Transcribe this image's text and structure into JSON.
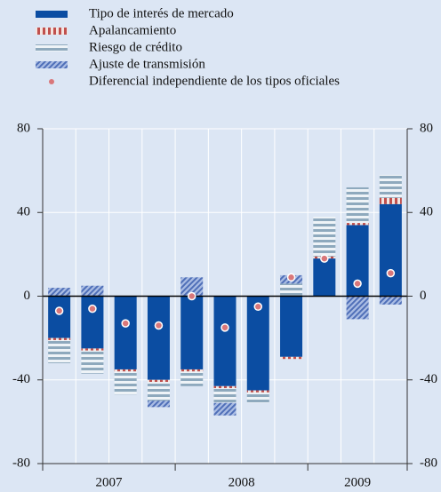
{
  "chart_data": {
    "type": "bar",
    "stacked": true,
    "categories": [
      "2007",
      null,
      null,
      null,
      "2008",
      null,
      null,
      null,
      "2009",
      null,
      null
    ],
    "series": [
      {
        "name": "Tipo de interés de mercado",
        "color": "#0b4da2",
        "pattern": "solid",
        "values": [
          -20,
          -25,
          -35,
          -40,
          -35,
          -43,
          -45,
          -29,
          18,
          34,
          44
        ]
      },
      {
        "name": "Apalancamiento",
        "color": "#c0504d",
        "pattern": "vlines",
        "values": [
          -1,
          -1,
          -1,
          -1,
          -1,
          -1,
          -1,
          -1,
          1,
          1,
          3
        ]
      },
      {
        "name": "Riesgo de crédito",
        "color": "#8ea9bd",
        "pattern": "hlines",
        "values": [
          -11,
          -11,
          -11,
          -9,
          -7,
          -7,
          -5,
          6,
          19,
          17,
          11
        ]
      },
      {
        "name": "Ajuste de transmisión",
        "color": "#4f6fb8",
        "pattern": "diagonal",
        "values": [
          4,
          5,
          0,
          -3,
          9,
          -6,
          0,
          4,
          0,
          -11,
          -4
        ]
      },
      {
        "name": "Diferencial independiente de los tipos oficiales",
        "color": "#d9777a",
        "type": "dot",
        "values": [
          -7,
          -6,
          -13,
          -14,
          0,
          -15,
          -5,
          9,
          18,
          6,
          11
        ]
      }
    ],
    "ylim": [
      -80,
      80
    ],
    "yticks": [
      -80,
      -40,
      0,
      40,
      80
    ],
    "grid": true,
    "background": "#dce6f4"
  }
}
